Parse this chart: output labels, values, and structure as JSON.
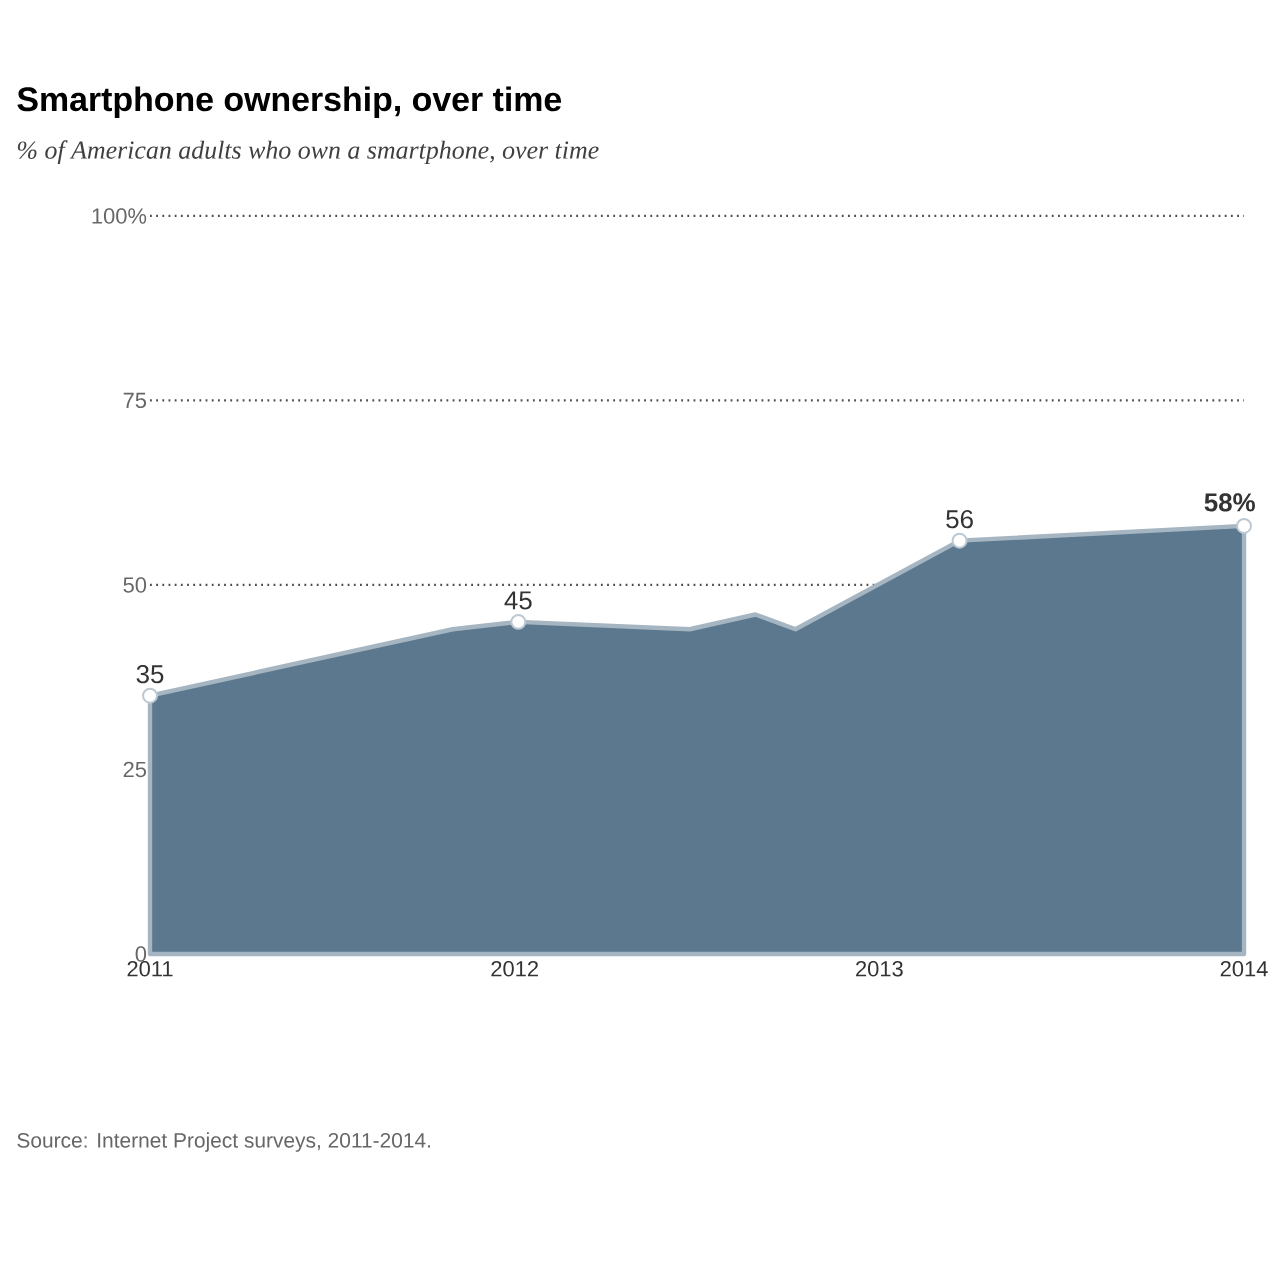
{
  "chart_data": {
    "type": "area",
    "title": "Smartphone ownership, over time",
    "subtitle": "% of American adults who own a smartphone, over time",
    "x": [
      2011.0,
      2011.83,
      2012.01,
      2012.48,
      2012.66,
      2012.77,
      2013.22,
      2014.0
    ],
    "series": [
      {
        "color": "#5b788e",
        "values": [
          35,
          44,
          45,
          44,
          46,
          44,
          56,
          58
        ],
        "value_labels": [
          "35",
          null,
          "45",
          null,
          null,
          null,
          "56",
          "58%"
        ]
      }
    ],
    "xlim": [
      2011,
      2014
    ],
    "xticks": [
      2011,
      2012,
      2013,
      2014
    ],
    "ylim": [
      0,
      100
    ],
    "yticks": [
      0,
      25,
      50,
      75,
      {
        "value": 100,
        "label": "100%"
      }
    ],
    "grid": "y",
    "marker": "circle",
    "annotations": [
      "Source: Internet Project surveys, 2011-2014."
    ]
  }
}
